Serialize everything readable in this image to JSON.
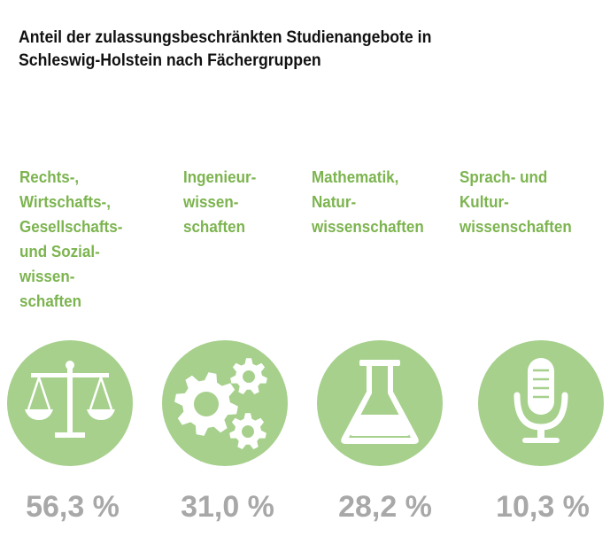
{
  "title": "Anteil der zulassungsbeschränkten Studienangebote in\nSchleswig-Holstein nach Fächergruppen",
  "colors": {
    "label": "#7cb44f",
    "circle": "#a6d08c",
    "icon": "#ffffff",
    "value": "#a8a8a8"
  },
  "chart_data": {
    "type": "bar",
    "title": "Anteil der zulassungsbeschränkten Studienangebote in Schleswig-Holstein nach Fächergruppen",
    "categories": [
      "Rechts-,\nWirtschafts-,\nGesellschafts-\nund Sozial-\nwissen-\nschaften",
      "Ingenieur-\nwissen-\nschaften",
      "Mathematik,\nNatur-\nwissenschaften",
      "Sprach- und\nKultur-\nwissenschaften"
    ],
    "values": [
      56.3,
      31.0,
      28.2,
      10.3
    ],
    "value_labels": [
      "56,3 %",
      "31,0 %",
      "28,2 %",
      "10,3 %"
    ],
    "unit": "%",
    "icons": [
      "scales-icon",
      "gears-icon",
      "flask-icon",
      "microphone-icon"
    ]
  }
}
